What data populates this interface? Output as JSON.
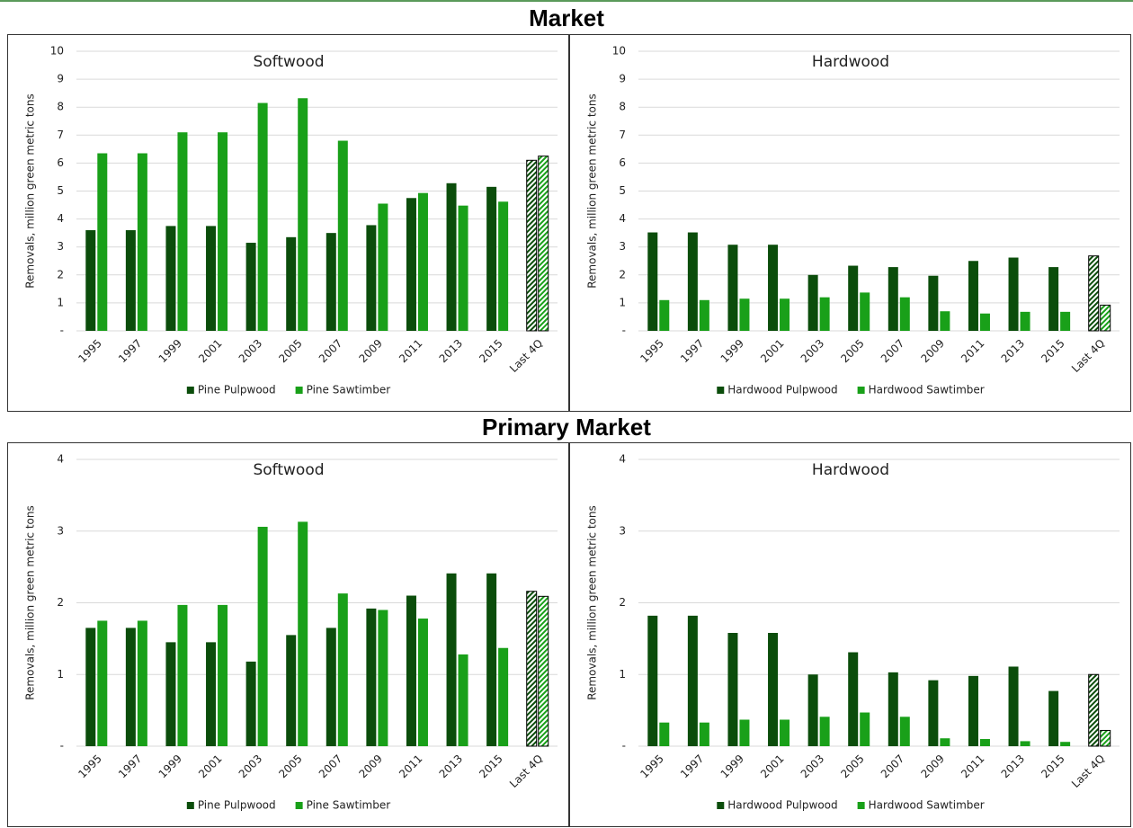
{
  "headings": [
    "Market",
    "Primary Market"
  ],
  "chart_data": [
    {
      "type": "bar",
      "title": "Softwood",
      "y_label": "Removals, million green metric tons",
      "categories": [
        "1995",
        "1997",
        "1999",
        "2001",
        "2003",
        "2005",
        "2007",
        "2009",
        "2011",
        "2013",
        "2015",
        "Last 4Q"
      ],
      "series": [
        {
          "name": "Pine Pulpwood",
          "color": "#0b4d0b",
          "values": [
            3.6,
            3.6,
            3.75,
            3.75,
            3.15,
            3.35,
            3.5,
            3.78,
            4.75,
            5.28,
            5.15,
            6.1
          ]
        },
        {
          "name": "Pine Sawtimber",
          "color": "#19a019",
          "values": [
            6.35,
            6.35,
            7.1,
            7.1,
            8.15,
            8.32,
            6.8,
            4.55,
            4.93,
            4.48,
            4.62,
            6.25
          ]
        }
      ],
      "ylim": [
        0,
        10
      ],
      "yticks": [
        {
          "value": 0,
          "label": "-"
        },
        1,
        2,
        3,
        4,
        5,
        6,
        7,
        8,
        9,
        10
      ],
      "grid": true
    },
    {
      "type": "bar",
      "title": "Hardwood",
      "y_label": "Removals, million green metric tons",
      "categories": [
        "1995",
        "1997",
        "1999",
        "2001",
        "2003",
        "2005",
        "2007",
        "2009",
        "2011",
        "2013",
        "2015",
        "Last 4Q"
      ],
      "series": [
        {
          "name": "Hardwood Pulpwood",
          "color": "#0b4d0b",
          "values": [
            3.52,
            3.52,
            3.08,
            3.08,
            2.0,
            2.33,
            2.28,
            1.97,
            2.5,
            2.62,
            2.28,
            2.68
          ]
        },
        {
          "name": "Hardwood Sawtimber",
          "color": "#19a019",
          "values": [
            1.1,
            1.1,
            1.15,
            1.15,
            1.2,
            1.37,
            1.2,
            0.7,
            0.62,
            0.68,
            0.68,
            0.92
          ]
        }
      ],
      "ylim": [
        0,
        10
      ],
      "yticks": [
        {
          "value": 0,
          "label": "-"
        },
        1,
        2,
        3,
        4,
        5,
        6,
        7,
        8,
        9,
        10
      ],
      "grid": true
    },
    {
      "type": "bar",
      "title": "Softwood",
      "y_label": "Removals, million green metric tons",
      "categories": [
        "1995",
        "1997",
        "1999",
        "2001",
        "2003",
        "2005",
        "2007",
        "2009",
        "2011",
        "2013",
        "2015",
        "Last 4Q"
      ],
      "series": [
        {
          "name": "Pine Pulpwood",
          "color": "#0b4d0b",
          "values": [
            1.65,
            1.65,
            1.45,
            1.45,
            1.18,
            1.55,
            1.65,
            1.92,
            2.1,
            2.41,
            2.41,
            2.16
          ]
        },
        {
          "name": "Pine Sawtimber",
          "color": "#19a019",
          "values": [
            1.75,
            1.75,
            1.97,
            1.97,
            3.06,
            3.13,
            2.13,
            1.9,
            1.78,
            1.28,
            1.37,
            2.09
          ]
        }
      ],
      "ylim": [
        0,
        4
      ],
      "yticks": [
        {
          "value": 0,
          "label": "-"
        },
        1,
        2,
        3,
        4
      ],
      "grid": true
    },
    {
      "type": "bar",
      "title": "Hardwood",
      "y_label": "Removals, million green metric tons",
      "categories": [
        "1995",
        "1997",
        "1999",
        "2001",
        "2003",
        "2005",
        "2007",
        "2009",
        "2011",
        "2013",
        "2015",
        "Last 4Q"
      ],
      "series": [
        {
          "name": "Hardwood Pulpwood",
          "color": "#0b4d0b",
          "values": [
            1.82,
            1.82,
            1.58,
            1.58,
            1.0,
            1.31,
            1.03,
            0.92,
            0.98,
            1.11,
            0.77,
            1.0
          ]
        },
        {
          "name": "Hardwood Sawtimber",
          "color": "#19a019",
          "values": [
            0.33,
            0.33,
            0.37,
            0.37,
            0.41,
            0.47,
            0.41,
            0.11,
            0.1,
            0.07,
            0.06,
            0.22
          ]
        }
      ],
      "ylim": [
        0,
        4
      ],
      "yticks": [
        {
          "value": 0,
          "label": "-"
        },
        1,
        2,
        3,
        4
      ],
      "grid": true
    }
  ]
}
